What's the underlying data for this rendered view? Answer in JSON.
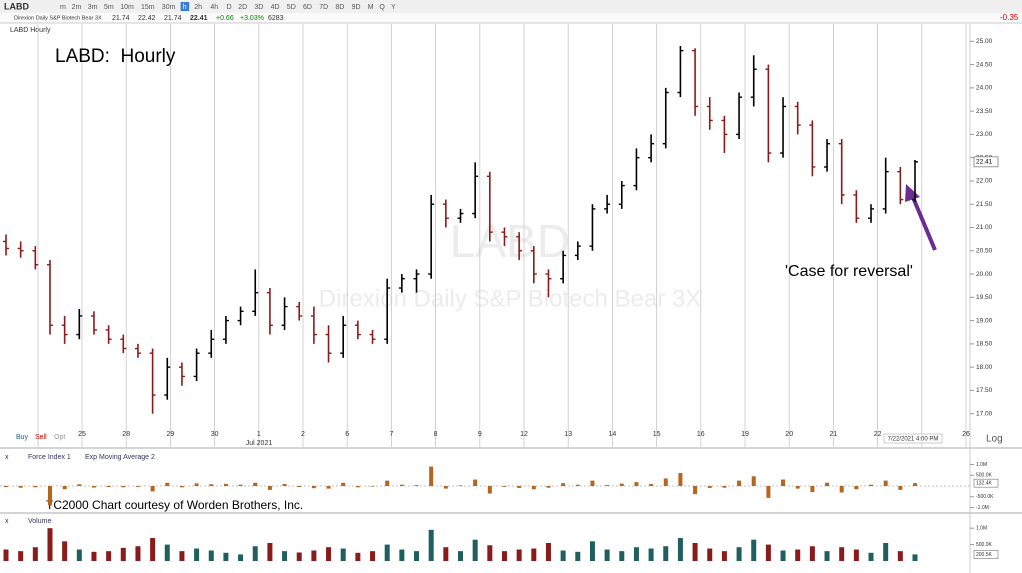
{
  "toolbar": {
    "symbol": "LABD",
    "timeframes": [
      "m",
      "2m",
      "3m",
      "5m",
      "10m",
      "15m",
      "30m",
      "h",
      "2h",
      "4h",
      "D",
      "2D",
      "3D",
      "4D",
      "5D",
      "6D",
      "7D",
      "8D",
      "9D",
      "M",
      "Q",
      "Y"
    ],
    "change": "-0.35"
  },
  "quote": {
    "name": "Direxion Daily S&P Biotech Bear 3X",
    "fields": [
      "21.74",
      "22.42",
      "21.74",
      "22.41",
      "+0.66",
      "+3.03%",
      "6283"
    ]
  },
  "chart_data": {
    "type": "ohlc",
    "title": "LABD Hourly",
    "annotation_title": "LABD:  Hourly",
    "annotation": "'Case for reversal'",
    "watermark_symbol": "LABD",
    "watermark_name": "Direxion Daily S&P Biotech Bear 3X",
    "credit": "TC2000 Chart courtesy of Worden Brothers, Inc.",
    "buttons": [
      "Buy",
      "Sell",
      "Opt"
    ],
    "scale_button": "Log",
    "x_labels": [
      "25",
      "28",
      "29",
      "30",
      "1",
      "2",
      "6",
      "7",
      "8",
      "9",
      "12",
      "13",
      "14",
      "15",
      "16",
      "19",
      "20",
      "21",
      "22",
      null,
      "26"
    ],
    "month_label": "Jul 2021",
    "time_label": "7/22/2021 4:00 PM",
    "ylim": [
      16.8,
      25.2
    ],
    "yticks": [
      {
        "value": 17,
        "label": "17.00"
      },
      {
        "value": 17.5,
        "label": "17.50"
      },
      {
        "value": 18,
        "label": "18.00"
      },
      {
        "value": 18.5,
        "label": "18.50"
      },
      {
        "value": 19,
        "label": "19.00"
      },
      {
        "value": 19.5,
        "label": "19.50"
      },
      {
        "value": 20,
        "label": "20.00"
      },
      {
        "value": 20.5,
        "label": "20.50"
      },
      {
        "value": 21,
        "label": "21.00"
      },
      {
        "value": 21.5,
        "label": "21.50"
      },
      {
        "value": 22,
        "label": "22.00"
      },
      {
        "value": 22.5,
        "label": "22.50"
      },
      {
        "value": 23,
        "label": "23.00"
      },
      {
        "value": 23.5,
        "label": "23.50"
      },
      {
        "value": 24,
        "label": "24.00"
      },
      {
        "value": 24.5,
        "label": "24.50"
      },
      {
        "value": 25,
        "label": "25.00"
      }
    ],
    "last_label": {
      "value": 22.41,
      "label": "22.41"
    },
    "up_color": "#000000",
    "down_color": "#8b1a1a",
    "open": [
      20.7,
      20.55,
      20.5,
      20.2,
      18.9,
      18.7,
      19.1,
      18.8,
      18.6,
      18.4,
      18.3,
      17.4,
      18.0,
      17.8,
      18.3,
      18.6,
      19.0,
      19.2,
      19.6,
      18.9,
      19.3,
      19.1,
      18.7,
      18.3,
      18.9,
      18.7,
      18.6,
      19.7,
      19.9,
      20.0,
      21.5,
      21.2,
      21.3,
      22.1,
      20.9,
      20.8,
      20.5,
      20.0,
      19.9,
      20.4,
      20.6,
      21.4,
      21.5,
      21.9,
      22.5,
      22.8,
      23.9,
      24.8,
      23.6,
      23.3,
      23.0,
      23.8,
      24.4,
      22.6,
      23.6,
      23.2,
      22.3,
      22.8,
      21.7,
      21.2,
      21.4,
      22.2,
      21.6
    ],
    "high": [
      20.85,
      20.7,
      20.6,
      20.3,
      19.1,
      19.25,
      19.2,
      18.9,
      18.7,
      18.5,
      18.4,
      18.2,
      18.1,
      18.4,
      18.8,
      19.1,
      19.3,
      20.1,
      19.7,
      19.5,
      19.4,
      19.3,
      18.9,
      19.1,
      19.0,
      18.8,
      19.9,
      20.0,
      20.1,
      21.7,
      21.6,
      21.4,
      22.4,
      22.2,
      21.0,
      20.9,
      20.6,
      20.1,
      20.5,
      20.7,
      21.5,
      21.7,
      22.0,
      22.7,
      23.0,
      24.0,
      24.9,
      24.85,
      23.8,
      23.4,
      23.9,
      24.7,
      24.5,
      23.8,
      23.7,
      23.3,
      22.9,
      22.9,
      21.8,
      21.5,
      22.5,
      22.3,
      22.45
    ],
    "low": [
      20.4,
      20.35,
      20.1,
      18.7,
      18.5,
      18.6,
      18.7,
      18.5,
      18.3,
      18.2,
      17.0,
      17.3,
      17.6,
      17.7,
      18.2,
      18.5,
      18.9,
      19.1,
      18.7,
      18.8,
      19.0,
      18.5,
      18.1,
      18.2,
      18.6,
      18.5,
      18.5,
      19.6,
      19.6,
      19.9,
      21.0,
      21.1,
      21.2,
      20.7,
      20.6,
      20.3,
      19.8,
      19.5,
      19.8,
      20.3,
      20.5,
      21.3,
      21.4,
      21.8,
      22.4,
      22.7,
      23.8,
      23.4,
      23.1,
      22.6,
      22.9,
      23.6,
      22.4,
      22.5,
      23.0,
      22.1,
      22.2,
      21.5,
      21.1,
      21.1,
      21.3,
      21.5,
      21.55
    ],
    "close": [
      20.55,
      20.5,
      20.2,
      18.9,
      18.7,
      19.1,
      18.8,
      18.6,
      18.4,
      18.3,
      17.4,
      18.0,
      17.8,
      18.3,
      18.6,
      19.0,
      19.2,
      19.6,
      18.9,
      19.3,
      19.1,
      18.7,
      18.3,
      18.9,
      18.7,
      18.6,
      19.7,
      19.9,
      20.0,
      21.5,
      21.2,
      21.3,
      22.1,
      20.9,
      20.8,
      20.5,
      20.0,
      19.9,
      20.4,
      20.6,
      21.4,
      21.5,
      21.9,
      22.5,
      22.8,
      23.9,
      24.8,
      23.6,
      23.3,
      23.0,
      23.8,
      24.4,
      22.6,
      23.6,
      23.2,
      22.3,
      22.8,
      21.7,
      21.2,
      21.4,
      22.2,
      21.6,
      22.41
    ],
    "force": {
      "name": "Force Index 1",
      "ema_name": "Exp Moving Average 2",
      "color": "#b5651d",
      "ylim": [
        -1300000,
        1300000
      ],
      "yticks": [
        {
          "value": 1000000,
          "label": "1.0M"
        },
        {
          "value": 500000,
          "label": "500.0K"
        },
        {
          "value": -500000,
          "label": "-500.0K"
        },
        {
          "value": -1000000,
          "label": "-1.0M"
        }
      ],
      "last_label": {
        "value": 132400,
        "label": "132.4K"
      },
      "values": [
        -50000,
        -80000,
        -60000,
        -900000,
        -150000,
        80000,
        -70000,
        -50000,
        -60000,
        -40000,
        -250000,
        150000,
        -60000,
        120000,
        80000,
        100000,
        60000,
        150000,
        -180000,
        90000,
        -50000,
        -100000,
        -120000,
        150000,
        -60000,
        -30000,
        250000,
        60000,
        40000,
        900000,
        -120000,
        30000,
        300000,
        -350000,
        -40000,
        -90000,
        -150000,
        -80000,
        130000,
        60000,
        250000,
        40000,
        110000,
        180000,
        90000,
        350000,
        600000,
        -380000,
        -90000,
        -80000,
        250000,
        450000,
        -550000,
        300000,
        -120000,
        -280000,
        150000,
        -300000,
        -150000,
        60000,
        250000,
        -180000,
        132400
      ]
    },
    "volume": {
      "name": "Volume",
      "up_color": "#1f5f5f",
      "down_color": "#8b1a1a",
      "ylim": [
        0,
        1250000
      ],
      "yticks": [
        {
          "value": 1000000,
          "label": "1.0M"
        },
        {
          "value": 500000,
          "label": "500.0K"
        }
      ],
      "last_label": {
        "value": 200500,
        "label": "200.5K"
      },
      "values": [
        350000,
        300000,
        420000,
        1000000,
        600000,
        350000,
        280000,
        300000,
        400000,
        450000,
        700000,
        500000,
        300000,
        380000,
        320000,
        250000,
        200000,
        450000,
        550000,
        300000,
        260000,
        320000,
        420000,
        380000,
        250000,
        300000,
        500000,
        350000,
        300000,
        950000,
        420000,
        300000,
        650000,
        480000,
        300000,
        350000,
        380000,
        550000,
        320000,
        280000,
        600000,
        350000,
        300000,
        420000,
        380000,
        450000,
        700000,
        550000,
        380000,
        300000,
        420000,
        650000,
        500000,
        320000,
        350000,
        450000,
        300000,
        420000,
        350000,
        250000,
        550000,
        300000,
        200500
      ]
    }
  }
}
